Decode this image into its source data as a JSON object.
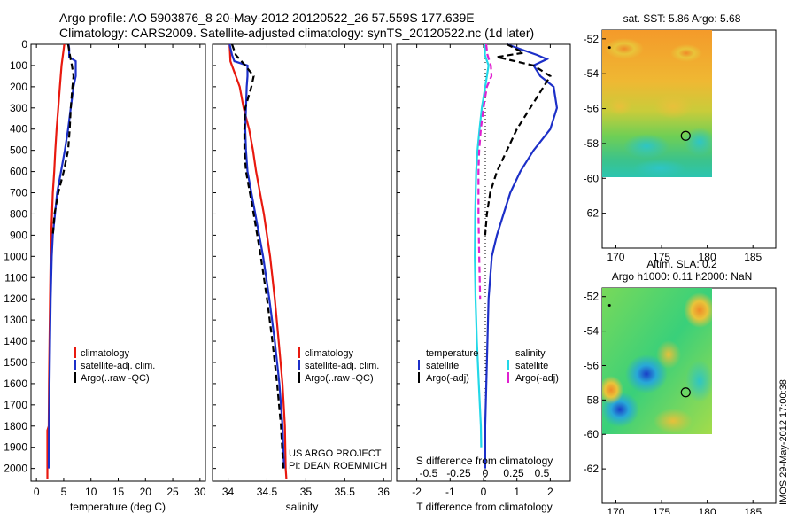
{
  "header": {
    "line1": "Argo profile: AO 5903876_8 20-May-2012 20120522_26 57.559S 177.639E",
    "line2": "Climatology: CARS2009. Satellite-adjusted climatology: synTS_20120522.nc (1d later)"
  },
  "credit": {
    "project": "US ARGO PROJECT",
    "pi": "PI: DEAN ROEMMICH"
  },
  "imos_stamp": "IMOS 29-May-2012 17:00:38",
  "colors": {
    "climatology": "#e8190f",
    "satellite": "#1c2fc8",
    "argo": "#000000",
    "salinity_satellite": "#22d8e8",
    "salinity_argo": "#e020d0"
  },
  "chart_data": [
    {
      "type": "line",
      "id": "temperature",
      "xlabel": "temperature (deg C)",
      "ylabel": "",
      "xlim": [
        -1,
        31
      ],
      "ylim": [
        2060,
        0
      ],
      "xticks": [
        0,
        5,
        10,
        15,
        20,
        25,
        30
      ],
      "yticks": [
        0,
        100,
        200,
        300,
        400,
        500,
        600,
        700,
        800,
        900,
        1000,
        1100,
        1200,
        1300,
        1400,
        1500,
        1600,
        1700,
        1800,
        1900,
        2000
      ],
      "legend": {
        "position": "lower-middle",
        "entries": [
          "climatology",
          "satellite-adj. clim.",
          "Argo(..raw -QC)"
        ]
      },
      "series": [
        {
          "name": "climatology",
          "style": "solid",
          "color": "#e8190f",
          "depth": [
            0,
            100,
            200,
            300,
            400,
            500,
            600,
            700,
            800,
            900,
            1000,
            1200,
            1400,
            1600,
            1800,
            1820,
            2050
          ],
          "values": [
            5.1,
            4.6,
            4.3,
            4.0,
            3.7,
            3.45,
            3.25,
            3.0,
            2.85,
            2.7,
            2.6,
            2.5,
            2.4,
            2.3,
            2.25,
            2.0,
            2.0
          ]
        },
        {
          "name": "satellite-adj. clim.",
          "style": "solid",
          "color": "#1c2fc8",
          "depth": [
            0,
            20,
            60,
            80,
            150,
            200,
            300,
            400,
            500,
            600,
            700,
            800,
            900,
            1000,
            1200,
            1400,
            1600,
            1800,
            2000
          ],
          "values": [
            5.9,
            6.0,
            6.0,
            7.2,
            7.2,
            6.8,
            6.3,
            5.8,
            5.2,
            4.5,
            3.8,
            3.4,
            3.0,
            2.8,
            2.6,
            2.5,
            2.4,
            2.3,
            2.25
          ]
        },
        {
          "name": "Argo(..raw -QC)",
          "style": "dashed",
          "color": "#000000",
          "depth": [
            0,
            30,
            60,
            100,
            150,
            200,
            300,
            400,
            500,
            600,
            700,
            800,
            900
          ],
          "values": [
            5.8,
            6.0,
            6.2,
            6.5,
            6.8,
            6.6,
            6.3,
            6.1,
            5.8,
            5.0,
            4.0,
            3.3,
            3.0
          ]
        }
      ]
    },
    {
      "type": "line",
      "id": "salinity",
      "xlabel": "salinity",
      "ylabel": "",
      "xlim": [
        33.8,
        36.1
      ],
      "ylim": [
        2060,
        0
      ],
      "xticks": [
        34,
        34.5,
        35,
        35.5,
        36
      ],
      "legend": {
        "position": "lower-middle",
        "entries": [
          "climatology",
          "satellite-adj. clim.",
          "Argo(..raw -QC)"
        ]
      },
      "series": [
        {
          "name": "climatology",
          "style": "solid",
          "color": "#e8190f",
          "depth": [
            0,
            80,
            200,
            300,
            400,
            500,
            600,
            800,
            1000,
            1200,
            1400,
            1600,
            1800,
            2000,
            2050
          ],
          "values": [
            34.02,
            34.03,
            34.15,
            34.2,
            34.27,
            34.32,
            34.36,
            34.46,
            34.54,
            34.6,
            34.65,
            34.7,
            34.73,
            34.74,
            34.75
          ]
        },
        {
          "name": "satellite-adj. clim.",
          "style": "solid",
          "color": "#1c2fc8",
          "depth": [
            0,
            50,
            80,
            100,
            150,
            200,
            300,
            400,
            500,
            600,
            800,
            1000,
            1200,
            1400,
            1600,
            1800,
            2000
          ],
          "values": [
            34.02,
            34.05,
            34.08,
            34.25,
            34.25,
            34.24,
            34.23,
            34.22,
            34.23,
            34.25,
            34.35,
            34.45,
            34.53,
            34.6,
            34.66,
            34.7,
            34.72
          ]
        },
        {
          "name": "Argo(..raw -QC)",
          "style": "dashed",
          "color": "#000000",
          "depth": [
            0,
            50,
            100,
            150,
            200,
            300,
            400,
            500,
            600,
            700,
            800,
            1000,
            1200,
            1400,
            1600,
            1800,
            2000
          ],
          "values": [
            34.05,
            34.1,
            34.22,
            34.33,
            34.3,
            34.22,
            34.21,
            34.21,
            34.23,
            34.28,
            34.33,
            34.42,
            34.5,
            34.57,
            34.63,
            34.68,
            34.71
          ]
        }
      ]
    },
    {
      "type": "line",
      "id": "difference",
      "xlabel": "T difference from climatology",
      "xlabel_top": "S difference from climatology",
      "ylabel": "",
      "xlim": [
        -2.6,
        2.6
      ],
      "ylim": [
        2060,
        0
      ],
      "xticks": [
        -2,
        -1,
        0,
        1,
        2
      ],
      "xticks_s": [
        "-0.5",
        "-0.25",
        "0",
        "0.25",
        "0.5"
      ],
      "legend": {
        "position": "lower-middle",
        "temperature_title": "temperature",
        "salinity_title": "salinity",
        "entries": [
          "satellite",
          "Argo(-adj)",
          "satellite",
          "Argo(-adj)"
        ]
      },
      "series": [
        {
          "name": "temperature satellite",
          "style": "solid",
          "color": "#1c2fc8",
          "depth": [
            0,
            50,
            70,
            100,
            150,
            200,
            300,
            400,
            500,
            600,
            700,
            800,
            900,
            1000,
            1200,
            1500,
            1800,
            2000
          ],
          "values": [
            0.7,
            1.6,
            1.9,
            1.5,
            1.7,
            2.1,
            2.2,
            2.0,
            1.5,
            1.1,
            0.8,
            0.6,
            0.4,
            0.25,
            0.15,
            0.1,
            0.05,
            0.05
          ]
        },
        {
          "name": "temperature Argo(-adj)",
          "style": "dashed",
          "color": "#000000",
          "depth": [
            0,
            40,
            60,
            100,
            150,
            200,
            300,
            400,
            500,
            600,
            700,
            800,
            900
          ],
          "values": [
            0.7,
            1.2,
            0.4,
            1.5,
            2.0,
            1.8,
            1.4,
            1.0,
            0.7,
            0.4,
            0.2,
            0.1,
            0.05
          ]
        },
        {
          "name": "salinity satellite",
          "style": "solid",
          "color": "#22d8e8",
          "depth": [
            0,
            50,
            100,
            150,
            200,
            300,
            400,
            500,
            600,
            800,
            1000,
            1200,
            1400,
            1600,
            1800,
            1900
          ],
          "values": [
            0.05,
            0.04,
            0.15,
            0.1,
            0.05,
            -0.05,
            -0.12,
            -0.18,
            -0.22,
            -0.25,
            -0.26,
            -0.24,
            -0.2,
            -0.14,
            -0.08,
            -0.07
          ]
        },
        {
          "name": "salinity Argo(-adj)",
          "style": "dashed",
          "color": "#e020d0",
          "depth": [
            0,
            50,
            100,
            150,
            200,
            300,
            400,
            500,
            600,
            800,
            1000,
            1200
          ],
          "values": [
            0.08,
            0.12,
            0.22,
            0.24,
            0.1,
            0.0,
            -0.08,
            -0.13,
            -0.15,
            -0.15,
            -0.13,
            -0.1
          ]
        }
      ]
    },
    {
      "type": "heatmap",
      "id": "sst-map",
      "title": "sat. SST: 5.86 Argo: 5.68",
      "xlim": [
        168.5,
        187.5
      ],
      "ylim": [
        -64,
        -51.5
      ],
      "xticks": [
        170,
        175,
        180,
        185
      ],
      "yticks": [
        -52,
        -54,
        -56,
        -58,
        -60,
        -62
      ],
      "data_extent": {
        "lon": [
          169,
          180
        ],
        "lat": [
          -60,
          -52
        ]
      },
      "argo_position": {
        "lon": 177.639,
        "lat": -57.559
      },
      "start_position": {
        "lon": 169.3,
        "lat": -52.5
      }
    },
    {
      "type": "heatmap",
      "id": "sla-map",
      "title": "Altim. SLA: 0.2",
      "subtitle": "Argo h1000: 0.11 h2000: NaN",
      "xlim": [
        168.5,
        187.5
      ],
      "ylim": [
        -64,
        -51.5
      ],
      "xticks": [
        170,
        175,
        180,
        185
      ],
      "yticks": [
        -52,
        -54,
        -56,
        -58,
        -60,
        -62
      ],
      "data_extent": {
        "lon": [
          169,
          180
        ],
        "lat": [
          -60,
          -52
        ]
      },
      "argo_position": {
        "lon": 177.639,
        "lat": -57.559
      },
      "start_position": {
        "lon": 169.3,
        "lat": -52.5
      }
    }
  ]
}
